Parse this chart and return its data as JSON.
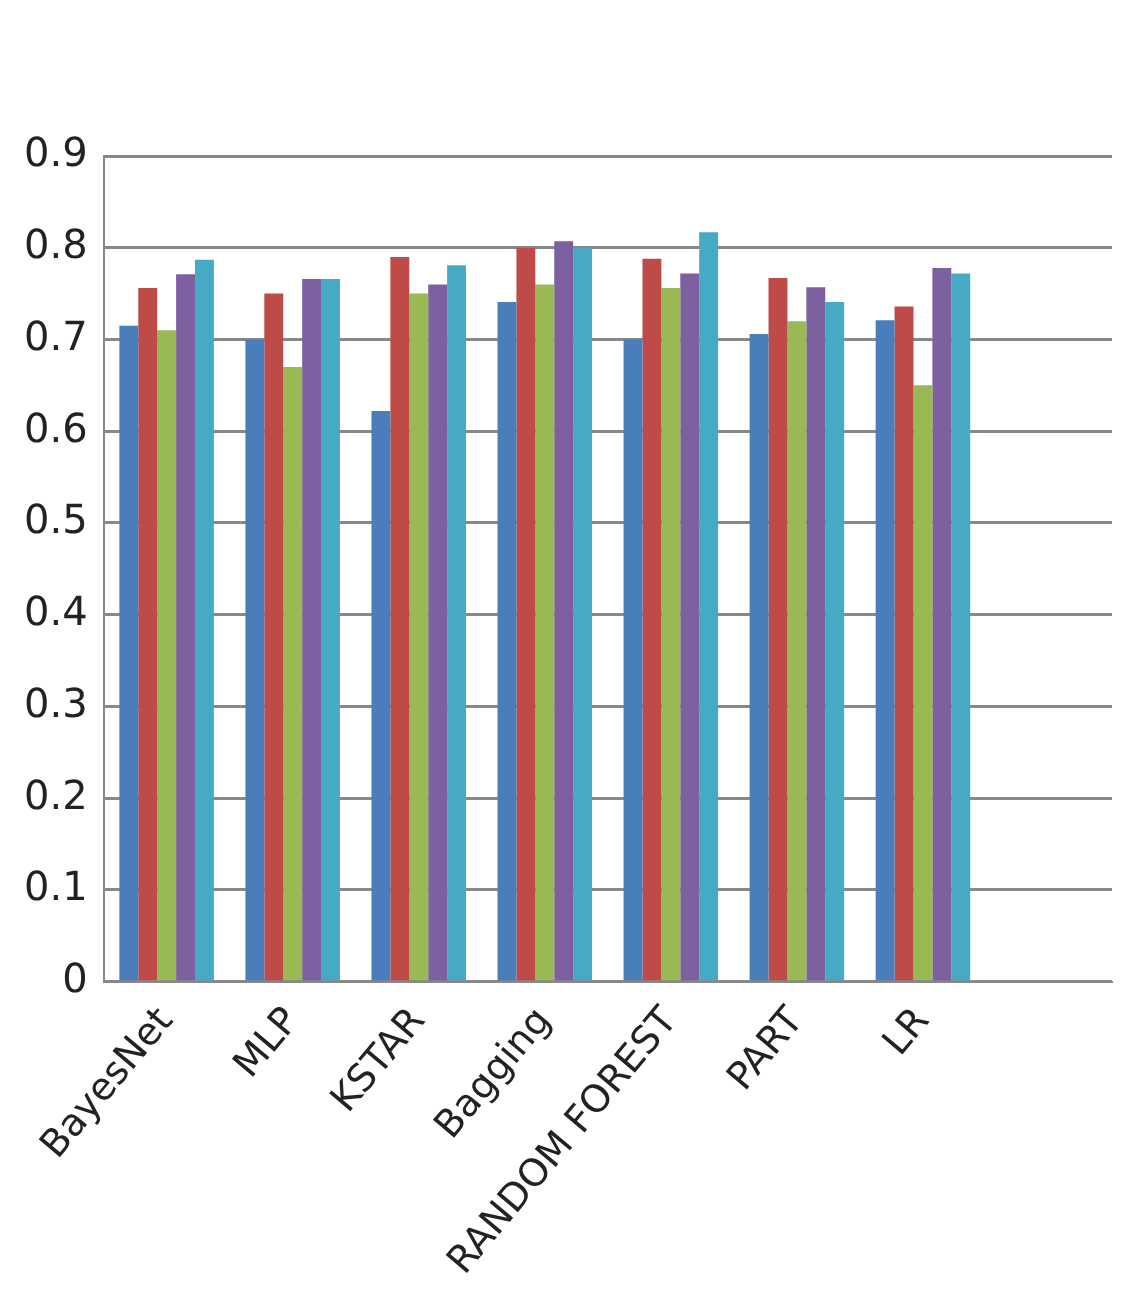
{
  "chart_data": {
    "type": "bar",
    "categories": [
      "BayesNet",
      "MLP",
      "KSTAR",
      "Bagging",
      "RANDOM FOREST",
      "PART",
      "LR",
      null
    ],
    "series": [
      {
        "color": "#4a7ebb",
        "values": [
          0.715,
          0.7,
          0.622,
          0.741,
          0.7,
          0.706,
          0.721,
          null
        ]
      },
      {
        "color": "#be4b48",
        "values": [
          0.756,
          0.75,
          0.79,
          0.8,
          0.788,
          0.767,
          0.736,
          null
        ]
      },
      {
        "color": "#98b954",
        "values": [
          0.71,
          0.67,
          0.75,
          0.76,
          0.756,
          0.72,
          0.65,
          null
        ]
      },
      {
        "color": "#7d60a0",
        "values": [
          0.771,
          0.766,
          0.76,
          0.807,
          0.772,
          0.757,
          0.778,
          null
        ]
      },
      {
        "color": "#46aac5",
        "values": [
          0.787,
          0.766,
          0.781,
          0.8,
          0.817,
          0.741,
          0.772,
          null
        ]
      }
    ],
    "ylim": [
      0,
      0.9
    ],
    "yticks": [
      0,
      0.1,
      0.2,
      0.3,
      0.4,
      0.5,
      0.6,
      0.7,
      0.8,
      0.9
    ],
    "grid": "y",
    "legend": false
  }
}
